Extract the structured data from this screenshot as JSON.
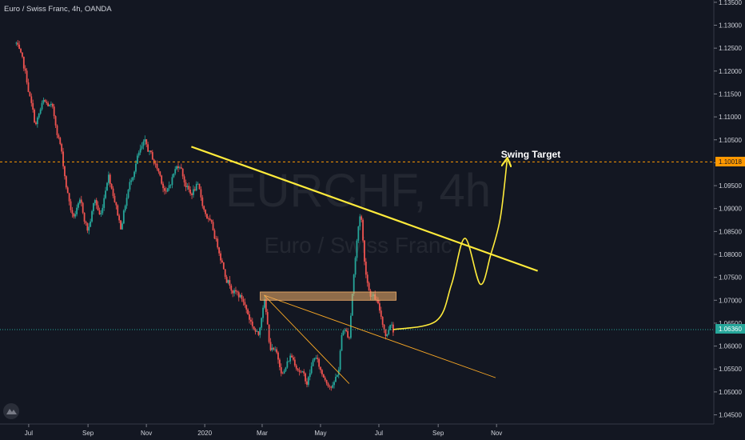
{
  "header": {
    "symbol_title": "Euro / Swiss Franc, 4h, OANDA"
  },
  "watermark": {
    "ticker": "EURCHF, 4h",
    "name": "Euro / Swiss Franc"
  },
  "colors": {
    "background": "#131722",
    "candle_up": "#26a69a",
    "candle_down": "#ef5350",
    "trendline": "#ffeb3b",
    "thin_trendline": "#f9a825",
    "zone_fill": "#f6b26b",
    "target_line": "#ff9800",
    "current_price": "#26a69a"
  },
  "chart_data": {
    "type": "candlestick",
    "title": "Euro / Swiss Franc, 4h, OANDA",
    "x_tick_labels": [
      "Jul",
      "Sep",
      "Nov",
      "2020",
      "Mar",
      "May",
      "Jul",
      "Sep",
      "Nov"
    ],
    "y_tick_labels": [
      "1.13500",
      "1.13000",
      "1.12500",
      "1.12000",
      "1.11500",
      "1.11000",
      "1.10500",
      "1.10000",
      "1.09500",
      "1.09000",
      "1.08500",
      "1.08000",
      "1.07500",
      "1.07000",
      "1.06500",
      "1.06000",
      "1.05500",
      "1.05000",
      "1.04500"
    ],
    "y_range": [
      1.043,
      1.1355
    ],
    "price_path": [
      [
        "2019-06-18",
        1.126
      ],
      [
        "2019-06-28",
        1.119
      ],
      [
        "2019-07-08",
        1.108
      ],
      [
        "2019-07-16",
        1.113
      ],
      [
        "2019-07-25",
        1.112
      ],
      [
        "2019-08-03",
        1.104
      ],
      [
        "2019-08-10",
        1.094
      ],
      [
        "2019-08-16",
        1.088
      ],
      [
        "2019-08-24",
        1.091
      ],
      [
        "2019-09-01",
        1.085
      ],
      [
        "2019-09-08",
        1.092
      ],
      [
        "2019-09-14",
        1.088
      ],
      [
        "2019-09-22",
        1.098
      ],
      [
        "2019-09-28",
        1.093
      ],
      [
        "2019-10-05",
        1.086
      ],
      [
        "2019-10-13",
        1.094
      ],
      [
        "2019-10-22",
        1.101
      ],
      [
        "2019-10-30",
        1.104
      ],
      [
        "2019-11-07",
        1.101
      ],
      [
        "2019-11-14",
        1.098
      ],
      [
        "2019-11-22",
        1.093
      ],
      [
        "2019-11-30",
        1.098
      ],
      [
        "2019-12-06",
        1.1
      ],
      [
        "2019-12-11",
        1.096
      ],
      [
        "2019-12-17",
        1.093
      ],
      [
        "2019-12-24",
        1.095
      ],
      [
        "2019-12-31",
        1.09
      ],
      [
        "2020-01-08",
        1.086
      ],
      [
        "2020-01-16",
        1.081
      ],
      [
        "2020-01-24",
        1.075
      ],
      [
        "2020-02-01",
        1.072
      ],
      [
        "2020-02-10",
        1.07
      ],
      [
        "2020-02-17",
        1.066
      ],
      [
        "2020-02-26",
        1.062
      ],
      [
        "2020-03-03",
        1.071
      ],
      [
        "2020-03-09",
        1.06
      ],
      [
        "2020-03-16",
        1.058
      ],
      [
        "2020-03-23",
        1.054
      ],
      [
        "2020-03-31",
        1.058
      ],
      [
        "2020-04-09",
        1.055
      ],
      [
        "2020-04-17",
        1.052
      ],
      [
        "2020-04-25",
        1.058
      ],
      [
        "2020-05-02",
        1.054
      ],
      [
        "2020-05-10",
        1.052
      ],
      [
        "2020-05-14",
        1.051
      ],
      [
        "2020-05-20",
        1.055
      ],
      [
        "2020-05-24",
        1.064
      ],
      [
        "2020-05-31",
        1.062
      ],
      [
        "2020-06-04",
        1.074
      ],
      [
        "2020-06-09",
        1.085
      ],
      [
        "2020-06-12",
        1.09
      ],
      [
        "2020-06-16",
        1.078
      ],
      [
        "2020-06-21",
        1.072
      ],
      [
        "2020-06-28",
        1.07
      ],
      [
        "2020-07-04",
        1.066
      ],
      [
        "2020-07-09",
        1.062
      ],
      [
        "2020-07-14",
        1.066
      ],
      [
        "2020-07-16",
        1.0636
      ]
    ],
    "current_price": "1.06360",
    "target_price": "1.10018",
    "annotations": [
      {
        "type": "trendline",
        "style": "thick",
        "points": [
          [
            "2019-12-18",
            1.1035
          ],
          [
            "2020-12-14",
            1.0764
          ]
        ]
      },
      {
        "type": "trendline",
        "style": "thin",
        "points": [
          [
            "2020-03-03",
            1.0711
          ],
          [
            "2020-10-31",
            1.0531
          ]
        ]
      },
      {
        "type": "trendline",
        "style": "thin",
        "points": [
          [
            "2020-03-03",
            1.0711
          ],
          [
            "2020-05-31",
            1.0518
          ]
        ]
      },
      {
        "type": "zone",
        "from": "2020-02-28",
        "to": "2020-07-19",
        "top": 1.0718,
        "bottom": 1.07
      },
      {
        "type": "projection",
        "points": [
          [
            "2020-07-16",
            1.0636
          ],
          [
            "2020-08-30",
            1.0655
          ],
          [
            "2020-09-15",
            1.0735
          ],
          [
            "2020-09-29",
            1.0835
          ],
          [
            "2020-10-15",
            1.0735
          ],
          [
            "2020-10-26",
            1.08
          ],
          [
            "2020-11-05",
            1.088
          ],
          [
            "2020-11-12",
            1.1005
          ]
        ]
      }
    ],
    "target_label": "Swing Target"
  }
}
